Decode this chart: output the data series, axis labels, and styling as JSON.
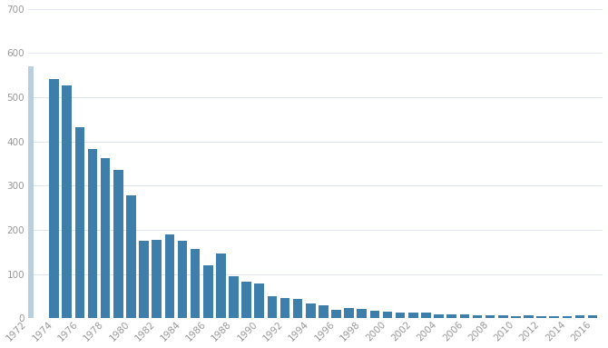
{
  "years": [
    1974,
    1975,
    1976,
    1977,
    1978,
    1979,
    1980,
    1981,
    1982,
    1983,
    1984,
    1985,
    1986,
    1987,
    1988,
    1989,
    1990,
    1991,
    1992,
    1993,
    1994,
    1995,
    1996,
    1997,
    1998,
    1999,
    2000,
    2001,
    2002,
    2003,
    2004,
    2005,
    2006,
    2007,
    2008,
    2009,
    2010,
    2011,
    2012,
    2013,
    2014,
    2015,
    2016
  ],
  "values": [
    540,
    527,
    433,
    382,
    363,
    335,
    278,
    176,
    177,
    189,
    175,
    157,
    120,
    147,
    95,
    83,
    78,
    50,
    45,
    43,
    33,
    29,
    20,
    24,
    22,
    17,
    15,
    13,
    13,
    13,
    9,
    8,
    8,
    7,
    7,
    7,
    5,
    7,
    5,
    5,
    5,
    7,
    7
  ],
  "bar_color": "#3d7eaa",
  "partial_year": 1972,
  "partial_value": 570,
  "partial_color": "#b8cfe0",
  "ylim": [
    0,
    700
  ],
  "yticks": [
    0,
    100,
    200,
    300,
    400,
    500,
    600,
    700
  ],
  "background_color": "#ffffff",
  "grid_color": "#dce6f0",
  "xtick_labels": [
    "1972",
    "1974",
    "1976",
    "1978",
    "1980",
    "1982",
    "1984",
    "1986",
    "1988",
    "1990",
    "1992",
    "1994",
    "1996",
    "1998",
    "2000",
    "2002",
    "2004",
    "2006",
    "2008",
    "2010",
    "2012",
    "2014",
    "2016"
  ],
  "xtick_positions": [
    1972,
    1974,
    1976,
    1978,
    1980,
    1982,
    1984,
    1986,
    1988,
    1990,
    1992,
    1994,
    1996,
    1998,
    2000,
    2002,
    2004,
    2006,
    2008,
    2010,
    2012,
    2014,
    2016
  ]
}
